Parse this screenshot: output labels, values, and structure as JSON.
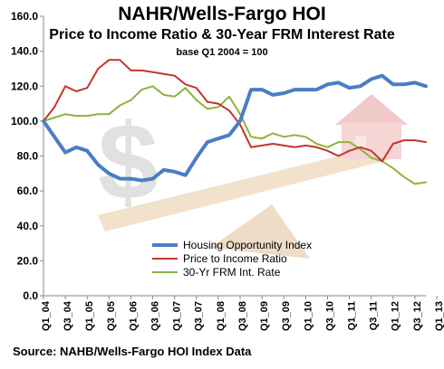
{
  "colors": {
    "housing_opportunity": "#4a7ec4",
    "price_to_income": "#c0362c",
    "frm_rate": "#8db43e",
    "axis": "#888888",
    "grid": "#cfcfcf",
    "dollar_sign": "#c9c9c9",
    "seesaw_wood": "#e9c9a1",
    "house": "#e89c9c"
  },
  "chart_data": {
    "type": "line",
    "title": "NAHR/Wells-Fargo  HOI",
    "subtitle": "Price to Income Ratio & 30-Year FRM Interest Rate",
    "base_note": "base Q1 2004 = 100",
    "source": "Source: NAHB/Wells-Fargo HOI Index Data",
    "ylim": [
      0,
      160
    ],
    "yticks": [
      "0.0",
      "20.0",
      "40.0",
      "60.0",
      "80.0",
      "100.0",
      "120.0",
      "140.0",
      "160.0"
    ],
    "ytick_values": [
      0,
      20,
      40,
      60,
      80,
      100,
      120,
      140,
      160
    ],
    "grid": false,
    "legend_position": "bottom-right",
    "x_labels": [
      "Q1_04",
      "Q3_04",
      "Q1_05",
      "Q3_05",
      "Q1_06",
      "Q3_06",
      "Q1_07",
      "Q3_07",
      "Q1_08",
      "Q3_08",
      "Q1_09",
      "Q3_09",
      "Q1_10",
      "Q3_10",
      "Q1_11",
      "Q3_11",
      "Q1_12",
      "Q3_12",
      "Q1_13"
    ],
    "series": [
      {
        "name": "Housing Opportunity Index",
        "color_key": "housing_opportunity",
        "values": [
          100,
          91,
          82,
          85,
          83,
          75,
          70,
          67,
          67,
          66,
          67,
          72,
          71,
          69,
          79,
          88,
          90,
          92,
          100,
          118,
          118,
          115,
          116,
          118,
          118,
          118,
          121,
          122,
          119,
          120,
          124,
          126,
          121,
          121,
          122,
          120
        ]
      },
      {
        "name": "Price to Income Ratio",
        "color_key": "price_to_income",
        "values": [
          100,
          108,
          120,
          117,
          119,
          130,
          135,
          135,
          129,
          129,
          128,
          127,
          126,
          121,
          119,
          111,
          110,
          106,
          98,
          85,
          86,
          87,
          86,
          85,
          86,
          85,
          83,
          80,
          83,
          85,
          83,
          77,
          87,
          89,
          89,
          88
        ]
      },
      {
        "name": "30-Yr FRM Int. Rate",
        "color_key": "frm_rate",
        "values": [
          100,
          102,
          104,
          103,
          103,
          104,
          104,
          109,
          112,
          118,
          120,
          115,
          114,
          119,
          112,
          107,
          108,
          114,
          104,
          91,
          90,
          93,
          91,
          92,
          91,
          87,
          85,
          88,
          88,
          84,
          79,
          77,
          73,
          68,
          64,
          65
        ]
      }
    ]
  }
}
